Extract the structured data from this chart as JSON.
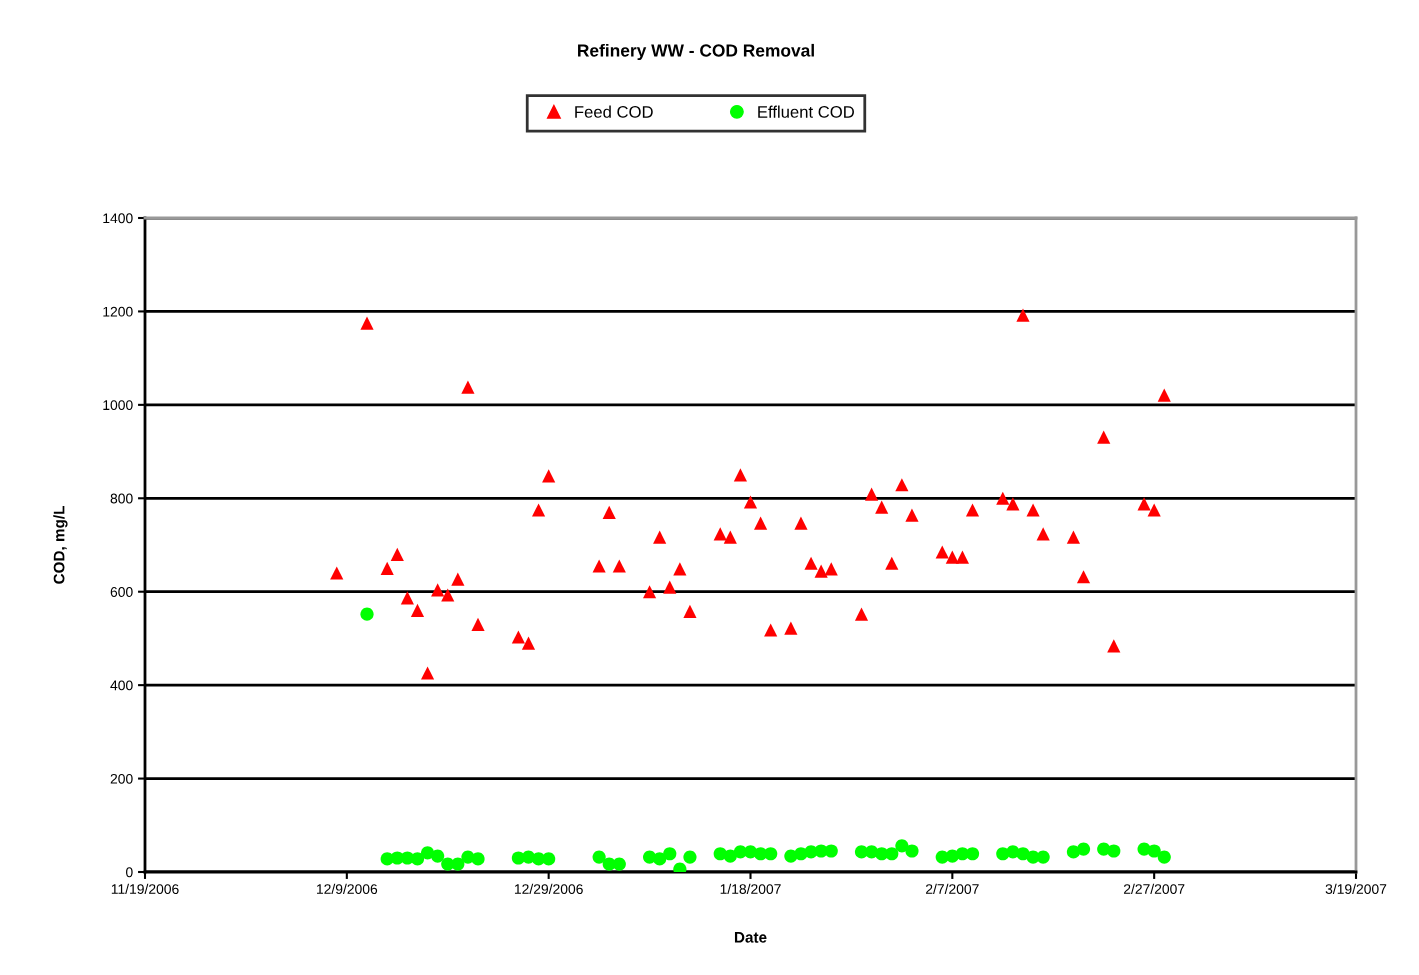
{
  "chart_data": {
    "type": "scatter",
    "title": "Refinery WW - COD Removal",
    "xlabel": "Date",
    "ylabel": "COD, mg/L",
    "xlim": [
      "2006-11-19",
      "2007-03-19"
    ],
    "xticks": [
      {
        "value": "2006-11-19",
        "label": "11/19/2006"
      },
      {
        "value": "2006-12-09",
        "label": "12/9/2006"
      },
      {
        "value": "2006-12-29",
        "label": "12/29/2006"
      },
      {
        "value": "2007-01-18",
        "label": "1/18/2007"
      },
      {
        "value": "2007-02-07",
        "label": "2/7/2007"
      },
      {
        "value": "2007-02-27",
        "label": "2/27/2007"
      },
      {
        "value": "2007-03-19",
        "label": "3/19/2007"
      }
    ],
    "ylim": [
      0,
      1400
    ],
    "yticks": [
      0,
      200,
      400,
      600,
      800,
      1000,
      1200,
      1400
    ],
    "grid": "y",
    "legend": "top",
    "series": [
      {
        "name": "Feed COD",
        "color": "#ff0000",
        "marker": "triangle",
        "x": [
          "2006-12-08",
          "2006-12-11",
          "2006-12-13",
          "2006-12-14",
          "2006-12-15",
          "2006-12-16",
          "2006-12-17",
          "2006-12-18",
          "2006-12-19",
          "2006-12-20",
          "2006-12-21",
          "2006-12-22",
          "2006-12-26",
          "2006-12-27",
          "2006-12-28",
          "2006-12-29",
          "2007-01-03",
          "2007-01-04",
          "2007-01-05",
          "2007-01-08",
          "2007-01-09",
          "2007-01-10",
          "2007-01-11",
          "2007-01-12",
          "2007-01-15",
          "2007-01-16",
          "2007-01-17",
          "2007-01-18",
          "2007-01-19",
          "2007-01-20",
          "2007-01-22",
          "2007-01-23",
          "2007-01-24",
          "2007-01-25",
          "2007-01-26",
          "2007-01-29",
          "2007-01-30",
          "2007-01-31",
          "2007-02-01",
          "2007-02-02",
          "2007-02-03",
          "2007-02-06",
          "2007-02-07",
          "2007-02-08",
          "2007-02-09",
          "2007-02-12",
          "2007-02-13",
          "2007-02-14",
          "2007-02-15",
          "2007-02-16",
          "2007-02-19",
          "2007-02-20",
          "2007-02-22",
          "2007-02-23",
          "2007-02-26",
          "2007-02-27",
          "2007-02-28"
        ],
        "values": [
          640,
          1175,
          650,
          680,
          587,
          560,
          426,
          604,
          593,
          627,
          1038,
          530,
          503,
          490,
          775,
          848,
          655,
          770,
          655,
          600,
          717,
          610,
          649,
          558,
          724,
          717,
          850,
          792,
          747,
          518,
          522,
          747,
          661,
          644,
          649,
          552,
          809,
          781,
          661,
          829,
          764,
          685,
          674,
          674,
          775,
          800,
          788,
          1192,
          775,
          724,
          717,
          632,
          931,
          484,
          788,
          775,
          1021
        ]
      },
      {
        "name": "Effluent COD",
        "color": "#00ff00",
        "marker": "circle",
        "x": [
          "2006-12-11",
          "2006-12-13",
          "2006-12-14",
          "2006-12-15",
          "2006-12-16",
          "2006-12-17",
          "2006-12-18",
          "2006-12-19",
          "2006-12-20",
          "2006-12-21",
          "2006-12-22",
          "2006-12-26",
          "2006-12-27",
          "2006-12-28",
          "2006-12-29",
          "2007-01-03",
          "2007-01-04",
          "2007-01-05",
          "2007-01-08",
          "2007-01-09",
          "2007-01-10",
          "2007-01-11",
          "2007-01-12",
          "2007-01-15",
          "2007-01-16",
          "2007-01-17",
          "2007-01-18",
          "2007-01-19",
          "2007-01-20",
          "2007-01-22",
          "2007-01-23",
          "2007-01-24",
          "2007-01-25",
          "2007-01-26",
          "2007-01-29",
          "2007-01-30",
          "2007-01-31",
          "2007-02-01",
          "2007-02-02",
          "2007-02-03",
          "2007-02-06",
          "2007-02-07",
          "2007-02-08",
          "2007-02-09",
          "2007-02-12",
          "2007-02-13",
          "2007-02-14",
          "2007-02-15",
          "2007-02-16",
          "2007-02-19",
          "2007-02-20",
          "2007-02-22",
          "2007-02-23",
          "2007-02-26",
          "2007-02-27",
          "2007-02-28"
        ],
        "values": [
          552,
          28,
          30,
          30,
          28,
          41,
          34,
          17,
          17,
          32,
          28,
          30,
          32,
          28,
          28,
          32,
          17,
          17,
          32,
          28,
          39,
          6,
          32,
          39,
          34,
          43,
          43,
          39,
          39,
          34,
          39,
          43,
          45,
          45,
          43,
          43,
          39,
          39,
          56,
          45,
          32,
          34,
          39,
          39,
          39,
          43,
          39,
          32,
          32,
          43,
          49,
          49,
          45,
          49,
          45,
          32
        ]
      }
    ]
  }
}
